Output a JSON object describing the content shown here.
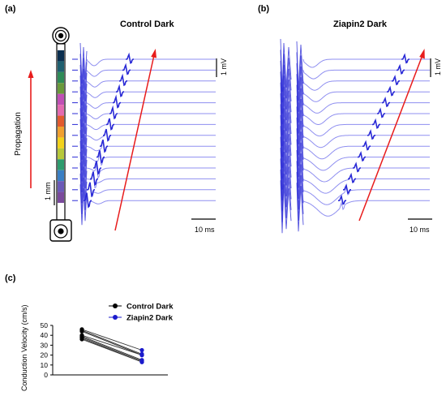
{
  "panel_a": {
    "letter": "(a)",
    "title": "Control Dark",
    "propagation_label": "Propagation",
    "scale_length": "1 mm",
    "scale_voltage": "1 mV",
    "scale_time": "10 ms",
    "colors": {
      "trace": "#2b2bd6",
      "trace_light": "#8f8ff0",
      "arrow": "#e81c1c"
    }
  },
  "panel_b": {
    "letter": "(b)",
    "title": "Ziapin2 Dark",
    "scale_voltage": "1 mV",
    "scale_time": "10 ms"
  },
  "panel_c": {
    "letter": "(c)",
    "ylabel": "Conduction Velocity (cm/s)",
    "legend": [
      "Control Dark",
      "Ziapin2 Dark"
    ]
  },
  "chart_data": [
    {
      "type": "line",
      "title": "",
      "xlabel": "",
      "ylabel": "Conduction Velocity (cm/s)",
      "ylim": [
        0,
        50
      ],
      "yticks": [
        0,
        10,
        20,
        30,
        40,
        50
      ],
      "legend_position": "top-right",
      "colors": {
        "Control Dark": "#000000",
        "Ziapin2 Dark": "#1a1acc"
      },
      "categories": [
        "Control Dark",
        "Ziapin2 Dark"
      ],
      "pairs": [
        [
          46,
          25
        ],
        [
          45,
          21
        ],
        [
          44,
          20
        ],
        [
          40,
          20
        ],
        [
          39,
          15
        ],
        [
          38,
          14
        ],
        [
          37,
          13
        ],
        [
          36,
          13
        ]
      ]
    }
  ]
}
